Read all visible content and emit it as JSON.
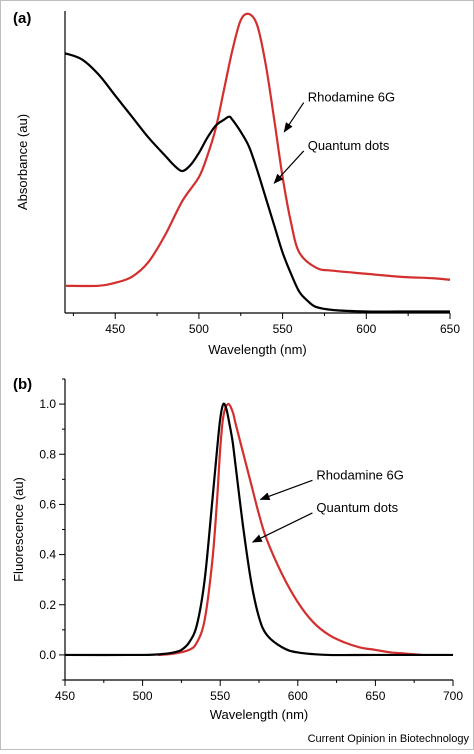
{
  "credit": "Current Opinion in Biotechnology",
  "colors": {
    "rhodamine": "#d32f2f",
    "quantum_dots": "#000000",
    "axis": "#000000"
  },
  "chart_data": [
    {
      "panel": "(a)",
      "type": "line",
      "xlabel": "Wavelength (nm)",
      "ylabel": "Absorbance (au)",
      "xlim": [
        420,
        650
      ],
      "ylim": [
        0,
        1
      ],
      "xticks": [
        450,
        500,
        550,
        600,
        650
      ],
      "xtick_labels": [
        "450",
        "500",
        "550",
        "600",
        "650"
      ],
      "yticks": [],
      "grid": false,
      "series": [
        {
          "name": "Rhodamine 6G",
          "color": "#d32f2f",
          "x": [
            420,
            440,
            450,
            460,
            470,
            480,
            490,
            500,
            505,
            510,
            515,
            520,
            525,
            530,
            535,
            540,
            545,
            550,
            555,
            560,
            570,
            580,
            600,
            620,
            640,
            650
          ],
          "y": [
            0.09,
            0.09,
            0.1,
            0.12,
            0.17,
            0.26,
            0.37,
            0.45,
            0.52,
            0.61,
            0.74,
            0.87,
            0.97,
            0.99,
            0.95,
            0.82,
            0.64,
            0.45,
            0.3,
            0.2,
            0.15,
            0.14,
            0.13,
            0.12,
            0.115,
            0.11
          ]
        },
        {
          "name": "Quantum dots",
          "color": "#000000",
          "x": [
            420,
            430,
            440,
            450,
            460,
            470,
            480,
            485,
            490,
            495,
            500,
            505,
            510,
            515,
            518,
            520,
            525,
            530,
            535,
            540,
            545,
            550,
            555,
            560,
            565,
            570,
            580,
            600,
            620,
            650
          ],
          "y": [
            0.86,
            0.84,
            0.79,
            0.72,
            0.65,
            0.58,
            0.52,
            0.49,
            0.47,
            0.49,
            0.53,
            0.58,
            0.62,
            0.64,
            0.65,
            0.64,
            0.6,
            0.55,
            0.47,
            0.38,
            0.29,
            0.2,
            0.13,
            0.07,
            0.04,
            0.02,
            0.01,
            0.005,
            0.005,
            0.005
          ]
        }
      ],
      "annotations": [
        {
          "text": "Rhodamine 6G",
          "x": 565,
          "y": 0.7,
          "arrow_to": [
            551,
            0.6
          ]
        },
        {
          "text": "Quantum dots",
          "x": 565,
          "y": 0.54,
          "arrow_to": [
            545,
            0.43
          ]
        }
      ]
    },
    {
      "panel": "(b)",
      "type": "line",
      "xlabel": "Wavelength (nm)",
      "ylabel": "Fluorescence (au)",
      "xlim": [
        450,
        700
      ],
      "ylim": [
        -0.1,
        1.1
      ],
      "xticks": [
        450,
        500,
        550,
        600,
        650,
        700
      ],
      "xtick_labels": [
        "450",
        "500",
        "550",
        "600",
        "650",
        "700"
      ],
      "yticks": [
        0,
        0.2,
        0.4,
        0.6,
        0.8,
        1.0
      ],
      "ytick_labels": [
        "0.0",
        "0.2",
        "0.4",
        "0.6",
        "0.8",
        "1.0"
      ],
      "grid": false,
      "series": [
        {
          "name": "Rhodamine 6G",
          "color": "#d32f2f",
          "x": [
            510,
            520,
            530,
            535,
            540,
            545,
            548,
            550,
            552,
            555,
            558,
            560,
            565,
            570,
            575,
            580,
            590,
            600,
            610,
            620,
            630,
            640,
            650,
            660,
            670,
            680
          ],
          "y": [
            0.0,
            0.005,
            0.02,
            0.05,
            0.14,
            0.38,
            0.62,
            0.82,
            0.95,
            1.0,
            0.97,
            0.92,
            0.8,
            0.68,
            0.56,
            0.46,
            0.32,
            0.21,
            0.13,
            0.08,
            0.05,
            0.03,
            0.02,
            0.01,
            0.005,
            0.0
          ]
        },
        {
          "name": "Quantum dots",
          "color": "#000000",
          "x": [
            450,
            500,
            515,
            520,
            525,
            530,
            535,
            540,
            545,
            548,
            550,
            552,
            554,
            556,
            558,
            560,
            565,
            570,
            575,
            580,
            590,
            600,
            620,
            650,
            700
          ],
          "y": [
            0.0,
            0.0,
            0.005,
            0.01,
            0.02,
            0.05,
            0.12,
            0.3,
            0.62,
            0.82,
            0.94,
            1.0,
            0.98,
            0.92,
            0.85,
            0.75,
            0.5,
            0.29,
            0.15,
            0.08,
            0.03,
            0.01,
            0.0,
            0.0,
            0.0
          ]
        }
      ],
      "annotations": [
        {
          "text": "Rhodamine 6G",
          "x": 612,
          "y": 0.7,
          "arrow_to": [
            576,
            0.62
          ]
        },
        {
          "text": "Quantum dots",
          "x": 612,
          "y": 0.57,
          "arrow_to": [
            571,
            0.45
          ]
        }
      ]
    }
  ]
}
